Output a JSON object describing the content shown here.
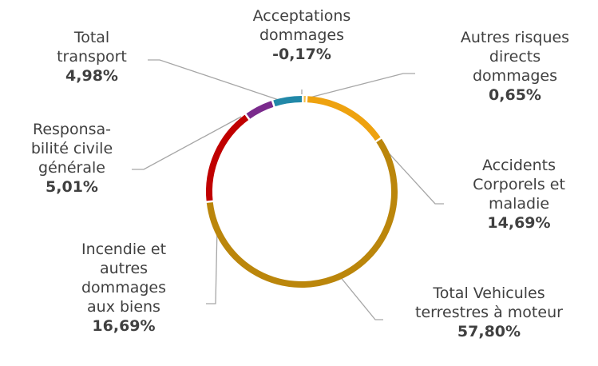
{
  "chart_data": {
    "type": "donut",
    "categories": [
      "Acceptations\ndommages",
      "Autres risques\ndirects\ndommages",
      "Accidents\nCorporels et\nmaladie",
      "Total Vehicules\nterrestres à moteur",
      "Incendie et\nautres\ndommages\naux biens",
      "Responsa-\nbilité civile\ngénérale",
      "Total\ntransport"
    ],
    "values": [
      -0.17,
      0.65,
      14.69,
      57.8,
      16.69,
      5.01,
      4.98
    ],
    "value_labels": [
      "-0,17%",
      "0,65%",
      "14,69%",
      "57,80%",
      "16,69%",
      "5,01%",
      "4,98%"
    ],
    "colors": [
      "#bfbfbf",
      "#f6c04a",
      "#eea20f",
      "#bb860b",
      "#c00000",
      "#7a2a8c",
      "#2188a8"
    ]
  }
}
